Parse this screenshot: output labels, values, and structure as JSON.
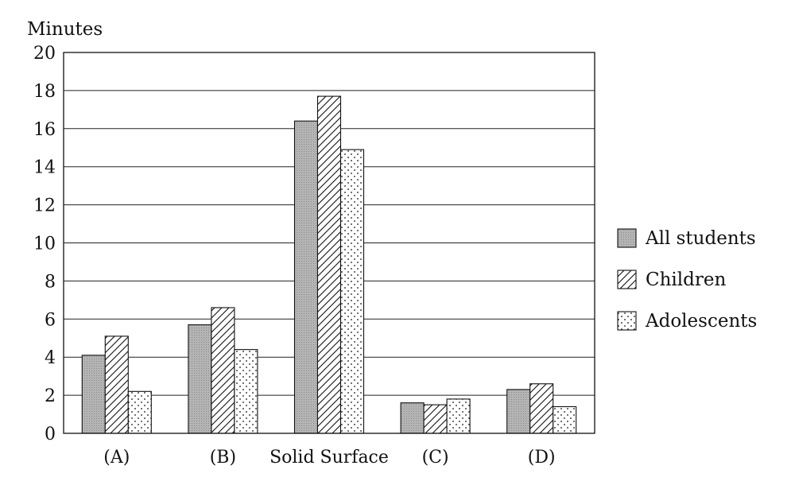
{
  "chart_data": {
    "type": "bar",
    "ylabel": "Minutes",
    "ylim": [
      0,
      20
    ],
    "yticks": [
      0,
      2,
      4,
      6,
      8,
      10,
      12,
      14,
      16,
      18,
      20
    ],
    "grid": true,
    "legend_position": "right",
    "categories": [
      "(A)",
      "(B)",
      "Solid Surface",
      "(C)",
      "(D)"
    ],
    "series": [
      {
        "name": "All students",
        "values": [
          4.1,
          5.7,
          16.4,
          1.6,
          2.3
        ],
        "pattern": "gray-fill",
        "color": "#a8a8a8"
      },
      {
        "name": "Children",
        "values": [
          5.1,
          6.6,
          17.7,
          1.5,
          2.6
        ],
        "pattern": "diagonal-hatch",
        "color": "#111111"
      },
      {
        "name": "Adolescents",
        "values": [
          2.2,
          4.4,
          14.9,
          1.8,
          1.4
        ],
        "pattern": "dots",
        "color": "#111111"
      }
    ]
  }
}
